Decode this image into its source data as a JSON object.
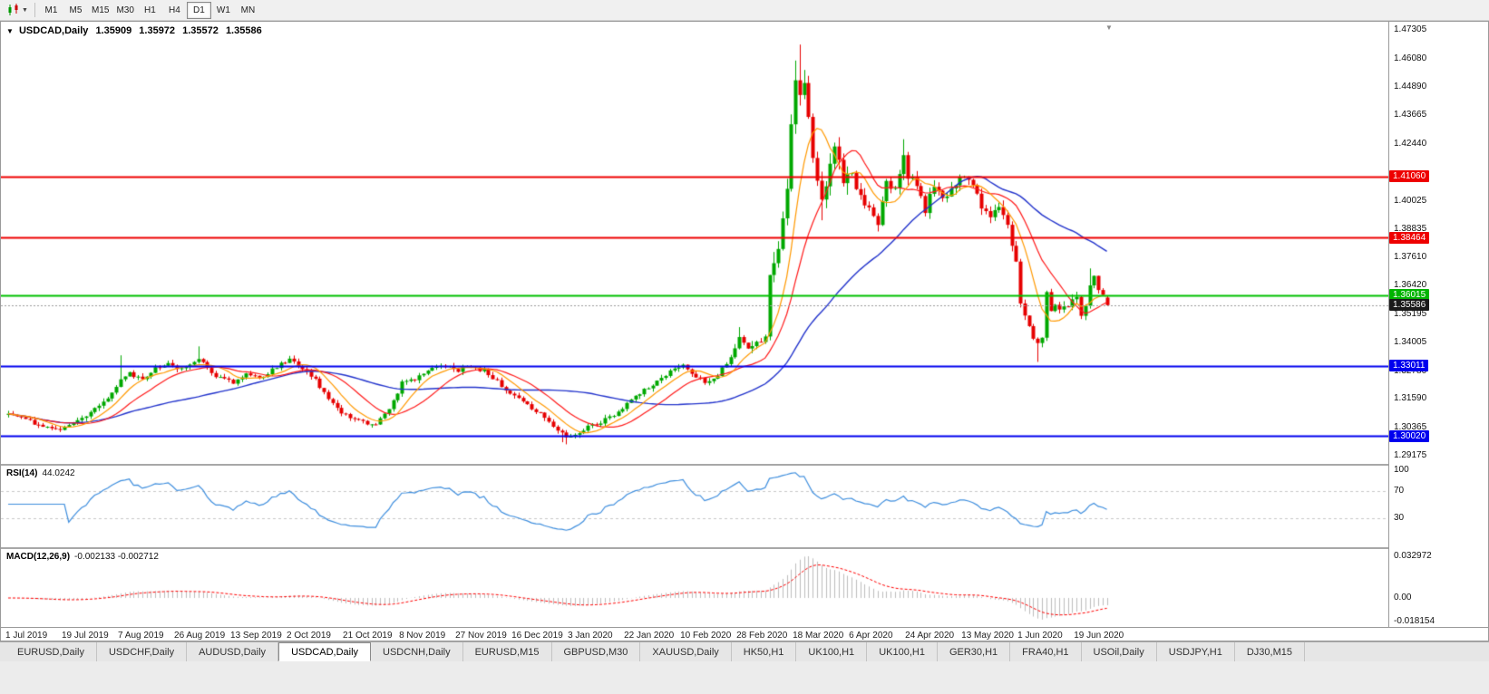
{
  "toolbar": {
    "timeframes": [
      "M1",
      "M5",
      "M15",
      "M30",
      "H1",
      "H4",
      "D1",
      "W1",
      "MN"
    ],
    "selected_timeframe": "D1"
  },
  "chart_header": {
    "symbol_period": "USDCAD,Daily",
    "open": "1.35909",
    "high": "1.35972",
    "low": "1.35572",
    "close": "1.35586"
  },
  "price_axis": {
    "labels": [
      {
        "text": "1.47305",
        "price": 1.47305
      },
      {
        "text": "1.46080",
        "price": 1.4608
      },
      {
        "text": "1.44890",
        "price": 1.4489
      },
      {
        "text": "1.43665",
        "price": 1.43665
      },
      {
        "text": "1.42440",
        "price": 1.4244
      },
      {
        "text": "1.40025",
        "price": 1.40025
      },
      {
        "text": "1.38835",
        "price": 1.38835
      },
      {
        "text": "1.37610",
        "price": 1.3761
      },
      {
        "text": "1.36420",
        "price": 1.3642
      },
      {
        "text": "1.35195",
        "price": 1.35195
      },
      {
        "text": "1.34005",
        "price": 1.34005
      },
      {
        "text": "1.32780",
        "price": 1.3278
      },
      {
        "text": "1.31590",
        "price": 1.3159
      },
      {
        "text": "1.30365",
        "price": 1.30365
      },
      {
        "text": "1.29175",
        "price": 1.29175
      }
    ],
    "level_tags": [
      {
        "text": "1.41060",
        "price": 1.4106,
        "bg": "#ee0000",
        "fg": "#ffffff"
      },
      {
        "text": "1.38464",
        "price": 1.38464,
        "bg": "#ee0000",
        "fg": "#ffffff"
      },
      {
        "text": "1.36015",
        "price": 1.36015,
        "bg": "#00b400",
        "fg": "#ffffff"
      },
      {
        "text": "1.35586",
        "price": 1.35586,
        "bg": "#1a1a1a",
        "fg": "#ffffff"
      },
      {
        "text": "1.33011",
        "price": 1.33011,
        "bg": "#0000ee",
        "fg": "#ffffff"
      },
      {
        "text": "1.30020",
        "price": 1.3002,
        "bg": "#0000ee",
        "fg": "#ffffff"
      }
    ]
  },
  "date_axis": {
    "labels": [
      {
        "text": "1 Jul 2019",
        "index": 0
      },
      {
        "text": "19 Jul 2019",
        "index": 13
      },
      {
        "text": "7 Aug 2019",
        "index": 26
      },
      {
        "text": "26 Aug 2019",
        "index": 39
      },
      {
        "text": "13 Sep 2019",
        "index": 52
      },
      {
        "text": "2 Oct 2019",
        "index": 65
      },
      {
        "text": "21 Oct 2019",
        "index": 78
      },
      {
        "text": "8 Nov 2019",
        "index": 91
      },
      {
        "text": "27 Nov 2019",
        "index": 104
      },
      {
        "text": "16 Dec 2019",
        "index": 117
      },
      {
        "text": "3 Jan 2020",
        "index": 130
      },
      {
        "text": "22 Jan 2020",
        "index": 143
      },
      {
        "text": "10 Feb 2020",
        "index": 156
      },
      {
        "text": "28 Feb 2020",
        "index": 169
      },
      {
        "text": "18 Mar 2020",
        "index": 182
      },
      {
        "text": "6 Apr 2020",
        "index": 195
      },
      {
        "text": "24 Apr 2020",
        "index": 208
      },
      {
        "text": "13 May 2020",
        "index": 221
      },
      {
        "text": "1 Jun 2020",
        "index": 234
      },
      {
        "text": "19 Jun 2020",
        "index": 247
      }
    ]
  },
  "rsi_panel": {
    "title": "RSI(14)",
    "value": "44.0242",
    "levels": [
      "100",
      "70",
      "30"
    ],
    "line_color": "#3e8ede",
    "level_line_color": "#c8c8c8"
  },
  "macd_panel": {
    "title": "MACD(12,26,9)",
    "values": "-0.002133 -0.002712",
    "scale_top": "0.032972",
    "scale_zero": "0.00",
    "scale_bottom": "-0.018154",
    "hist_color": "#bdbdbd",
    "signal_color": "#ff0000"
  },
  "levels": [
    {
      "price": 1.4106,
      "color": "#ee0000",
      "width": 2
    },
    {
      "price": 1.38464,
      "color": "#ee0000",
      "width": 2
    },
    {
      "price": 1.36015,
      "color": "#00c000",
      "width": 2
    },
    {
      "price": 1.33011,
      "color": "#0000ee",
      "width": 2
    },
    {
      "price": 1.3002,
      "color": "#0000ee",
      "width": 2
    }
  ],
  "chart_data": {
    "type": "candlestick",
    "symbol": "USDCAD",
    "timeframe": "Daily",
    "title": "USDCAD,Daily",
    "current_ohlc": {
      "open": 1.35909,
      "high": 1.35972,
      "low": 1.35572,
      "close": 1.35586
    },
    "current_price": 1.35586,
    "y_axis": {
      "top_price": 1.47305,
      "bottom_price": 1.29175
    },
    "x_axis_range": [
      "1 Jul 2019",
      "19 Jun 2020"
    ],
    "grid": false,
    "candle_count": 255,
    "up_color": "#00a800",
    "down_color": "#e60000",
    "close_anchors": [
      [
        0,
        1.3095
      ],
      [
        4,
        1.3068
      ],
      [
        8,
        1.3045
      ],
      [
        12,
        1.3035
      ],
      [
        15,
        1.3058
      ],
      [
        18,
        1.3092
      ],
      [
        21,
        1.3125
      ],
      [
        24,
        1.3185
      ],
      [
        26,
        1.324
      ],
      [
        28,
        1.3268
      ],
      [
        31,
        1.3245
      ],
      [
        34,
        1.3292
      ],
      [
        37,
        1.3312
      ],
      [
        39,
        1.3282
      ],
      [
        42,
        1.3308
      ],
      [
        44,
        1.333
      ],
      [
        46,
        1.329
      ],
      [
        48,
        1.3252
      ],
      [
        52,
        1.3232
      ],
      [
        55,
        1.3272
      ],
      [
        58,
        1.3242
      ],
      [
        61,
        1.3282
      ],
      [
        65,
        1.333
      ],
      [
        68,
        1.3288
      ],
      [
        71,
        1.3238
      ],
      [
        74,
        1.3152
      ],
      [
        78,
        1.3088
      ],
      [
        82,
        1.3062
      ],
      [
        85,
        1.305
      ],
      [
        88,
        1.3112
      ],
      [
        91,
        1.3228
      ],
      [
        94,
        1.3246
      ],
      [
        97,
        1.3282
      ],
      [
        100,
        1.3308
      ],
      [
        102,
        1.3292
      ],
      [
        104,
        1.3282
      ],
      [
        107,
        1.3298
      ],
      [
        110,
        1.3278
      ],
      [
        113,
        1.3232
      ],
      [
        117,
        1.3172
      ],
      [
        120,
        1.3132
      ],
      [
        123,
        1.3098
      ],
      [
        126,
        1.3048
      ],
      [
        129,
        1.2992
      ],
      [
        131,
        1.3005
      ],
      [
        134,
        1.3042
      ],
      [
        137,
        1.3062
      ],
      [
        140,
        1.3092
      ],
      [
        143,
        1.314
      ],
      [
        146,
        1.3182
      ],
      [
        149,
        1.3222
      ],
      [
        152,
        1.3262
      ],
      [
        155,
        1.3298
      ],
      [
        156,
        1.3308
      ],
      [
        158,
        1.3262
      ],
      [
        161,
        1.3232
      ],
      [
        164,
        1.3262
      ],
      [
        167,
        1.3338
      ],
      [
        169,
        1.342
      ],
      [
        171,
        1.3362
      ],
      [
        173,
        1.3398
      ],
      [
        175,
        1.3422
      ],
      [
        176,
        1.366
      ],
      [
        177,
        1.3728
      ],
      [
        178,
        1.3788
      ],
      [
        179,
        1.3925
      ],
      [
        180,
        1.4048
      ],
      [
        181,
        1.432
      ],
      [
        182,
        1.4505
      ],
      [
        183,
        1.4435
      ],
      [
        184,
        1.4492
      ],
      [
        185,
        1.436
      ],
      [
        186,
        1.4178
      ],
      [
        187,
        1.4062
      ],
      [
        188,
        1.3992
      ],
      [
        189,
        1.4088
      ],
      [
        190,
        1.418
      ],
      [
        191,
        1.4212
      ],
      [
        192,
        1.4152
      ],
      [
        193,
        1.41
      ],
      [
        195,
        1.4108
      ],
      [
        197,
        1.4022
      ],
      [
        199,
        1.3962
      ],
      [
        201,
        1.3892
      ],
      [
        203,
        1.4088
      ],
      [
        205,
        1.4042
      ],
      [
        207,
        1.4188
      ],
      [
        208,
        1.4098
      ],
      [
        210,
        1.4078
      ],
      [
        212,
        1.3962
      ],
      [
        214,
        1.4072
      ],
      [
        216,
        1.4002
      ],
      [
        218,
        1.4042
      ],
      [
        220,
        1.4108
      ],
      [
        221,
        1.4098
      ],
      [
        223,
        1.4058
      ],
      [
        225,
        1.3978
      ],
      [
        227,
        1.3922
      ],
      [
        229,
        1.3988
      ],
      [
        231,
        1.3892
      ],
      [
        233,
        1.3742
      ],
      [
        234,
        1.3562
      ],
      [
        235,
        1.3522
      ],
      [
        236,
        1.3472
      ],
      [
        237,
        1.3422
      ],
      [
        238,
        1.3392
      ],
      [
        239,
        1.3432
      ],
      [
        240,
        1.3618
      ],
      [
        241,
        1.3542
      ],
      [
        242,
        1.3562
      ],
      [
        243,
        1.3532
      ],
      [
        244,
        1.3542
      ],
      [
        245,
        1.3562
      ],
      [
        246,
        1.3582
      ],
      [
        247,
        1.3602
      ],
      [
        248,
        1.3522
      ],
      [
        249,
        1.3562
      ],
      [
        250,
        1.3642
      ],
      [
        251,
        1.3682
      ],
      [
        252,
        1.3632
      ],
      [
        253,
        1.3592
      ],
      [
        254,
        1.35586
      ]
    ],
    "volatility_regimes": [
      {
        "from": 0,
        "to": 167,
        "vol": 0.0032
      },
      {
        "from": 168,
        "to": 175,
        "vol": 0.005
      },
      {
        "from": 176,
        "to": 194,
        "vol": 0.011
      },
      {
        "from": 195,
        "to": 232,
        "vol": 0.0065
      },
      {
        "from": 233,
        "to": 254,
        "vol": 0.005
      }
    ],
    "wick_overrides": [
      {
        "i": 26,
        "h": 1.3345
      },
      {
        "i": 44,
        "h": 1.3383
      },
      {
        "i": 128,
        "l": 1.2975
      },
      {
        "i": 129,
        "l": 1.2966
      },
      {
        "i": 169,
        "h": 1.3465
      },
      {
        "i": 182,
        "h": 1.46
      },
      {
        "i": 183,
        "h": 1.4668
      },
      {
        "i": 184,
        "h": 1.456
      },
      {
        "i": 188,
        "l": 1.392
      },
      {
        "i": 191,
        "h": 1.4245
      },
      {
        "i": 207,
        "h": 1.4265
      },
      {
        "i": 238,
        "l": 1.3317
      },
      {
        "i": 250,
        "h": 1.3715
      }
    ],
    "last_candle": {
      "o": 1.35909,
      "h": 1.35972,
      "l": 1.35572,
      "c": 1.35586
    },
    "moving_averages": [
      {
        "period": 8,
        "color": "#ff9900"
      },
      {
        "period": 16,
        "color": "#ff1a1a"
      },
      {
        "period": 45,
        "color": "#2233cc"
      }
    ],
    "indicators": [
      {
        "name": "RSI",
        "period": 14,
        "value": 44.0242
      },
      {
        "name": "MACD",
        "fast": 12,
        "slow": 26,
        "signal": 9,
        "value": -0.002133,
        "signal_value": -0.002712
      }
    ]
  },
  "tabs": {
    "items": [
      "EURUSD,Daily",
      "USDCHF,Daily",
      "AUDUSD,Daily",
      "USDCAD,Daily",
      "USDCNH,Daily",
      "EURUSD,M15",
      "GBPUSD,M30",
      "XAUUSD,Daily",
      "HK50,H1",
      "UK100,H1",
      "UK100,H1",
      "GER30,H1",
      "FRA40,H1",
      "USOil,Daily",
      "USDJPY,H1",
      "DJ30,M15"
    ],
    "active_index": 3
  }
}
